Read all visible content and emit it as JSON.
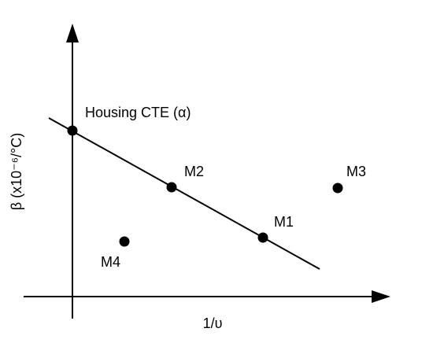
{
  "axes": {
    "y_label": "β (x10⁻⁶/°C)",
    "x_label": "1/υ"
  },
  "points": [
    {
      "label": "Housing CTE (α)"
    },
    {
      "label": "M2"
    },
    {
      "label": "M1"
    },
    {
      "label": "M3"
    },
    {
      "label": "M4"
    }
  ]
}
